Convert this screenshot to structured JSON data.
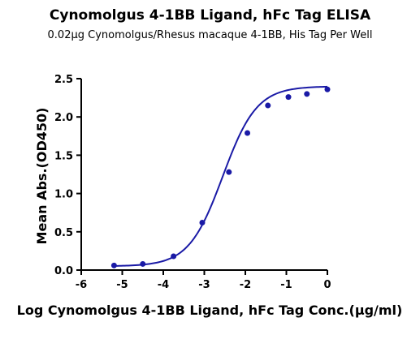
{
  "chart_data": {
    "type": "scatter",
    "title": "Cynomolgus 4-1BB Ligand, hFc Tag ELISA",
    "subtitle": "0.02μg Cynomolgus/Rhesus macaque 4-1BB, His Tag Per Well",
    "xlabel": "Log Cynomolgus 4-1BB Ligand, hFc Tag Conc.(μg/ml)",
    "ylabel": "Mean Abs.(OD450)",
    "xlim": [
      -6,
      0
    ],
    "ylim": [
      0,
      2.5
    ],
    "x_ticks": [
      "-6",
      "-5",
      "-4",
      "-3",
      "-2",
      "-1",
      "0"
    ],
    "y_ticks": [
      "0.0",
      "0.5",
      "1.0",
      "1.5",
      "2.0",
      "2.5"
    ],
    "grid": false,
    "series": [
      {
        "x": [
          -5.2,
          -4.5,
          -3.75,
          -3.05,
          -2.4,
          -1.95,
          -1.45,
          -0.95,
          -0.5,
          0.0
        ],
        "y": [
          0.06,
          0.08,
          0.18,
          0.62,
          1.28,
          1.79,
          2.15,
          2.26,
          2.3,
          2.36
        ],
        "fit": {
          "model": "4PL",
          "bottom": 0.05,
          "top": 2.4,
          "logEC50": -2.55,
          "hill": 1.05
        }
      }
    ],
    "colors": {
      "series": "#1a1aa6",
      "axis": "#000000"
    }
  }
}
